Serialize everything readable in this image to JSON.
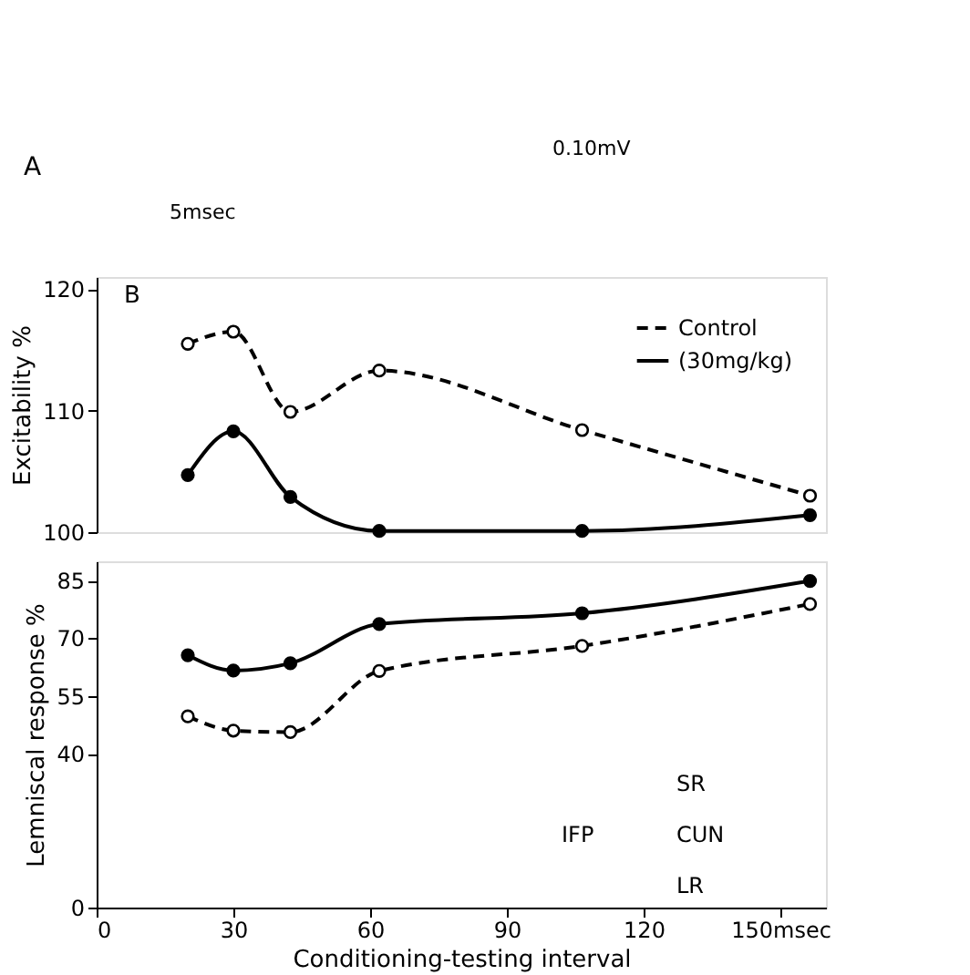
{
  "chart_data": [
    {
      "type": "line",
      "ylabel": "Excitability %",
      "xlim": [
        0,
        160
      ],
      "xticks": [
        0,
        30,
        60,
        90,
        120,
        150
      ],
      "ylim": [
        100,
        121
      ],
      "yticks": [
        100,
        110,
        120
      ],
      "tick_labels": "y",
      "marker": "circle",
      "legend": "top right",
      "grid": false,
      "annotations": [
        "A",
        "5msec",
        "0.10mV",
        "B"
      ],
      "series": [
        {
          "name": "Control",
          "color": "#000000",
          "line_style": "dashed",
          "x": [
            20,
            30,
            42.5,
            62,
            106.5,
            156.5
          ],
          "values": [
            115.5,
            116.5,
            109.9,
            113.3,
            108.4,
            103.0
          ]
        },
        {
          "name": "(30mg/kg)",
          "color": "#000000",
          "line_style": "solid",
          "x": [
            20,
            30,
            42.5,
            62,
            106.5,
            156.5
          ],
          "values": [
            104.7,
            108.3,
            102.9,
            100.1,
            100.1,
            101.4
          ]
        }
      ]
    },
    {
      "type": "line",
      "ylabel": "Lemniscal response %",
      "xlabel": "Conditioning-testing interval",
      "xlim": [
        0,
        160
      ],
      "xticks": [
        0,
        30,
        60,
        90,
        120,
        {
          "value": 150,
          "label": "150msec"
        }
      ],
      "ylim": [
        0,
        90
      ],
      "yticks": [
        0,
        40,
        55,
        70,
        85
      ],
      "marker": "circle",
      "grid": false,
      "annotations": [
        "IFP",
        "CUN",
        "SR",
        "LR"
      ],
      "series": [
        {
          "color": "#000000",
          "line_style": "dashed",
          "x": [
            20,
            30,
            42.5,
            62,
            106.5,
            156.5
          ],
          "values": [
            49.7,
            46.0,
            45.6,
            61.5,
            68.0,
            78.9
          ]
        },
        {
          "color": "#000000",
          "line_style": "solid",
          "x": [
            20,
            30,
            42.5,
            62,
            106.5,
            156.5
          ],
          "values": [
            65.6,
            61.6,
            63.5,
            73.7,
            76.5,
            84.9
          ]
        }
      ]
    }
  ]
}
